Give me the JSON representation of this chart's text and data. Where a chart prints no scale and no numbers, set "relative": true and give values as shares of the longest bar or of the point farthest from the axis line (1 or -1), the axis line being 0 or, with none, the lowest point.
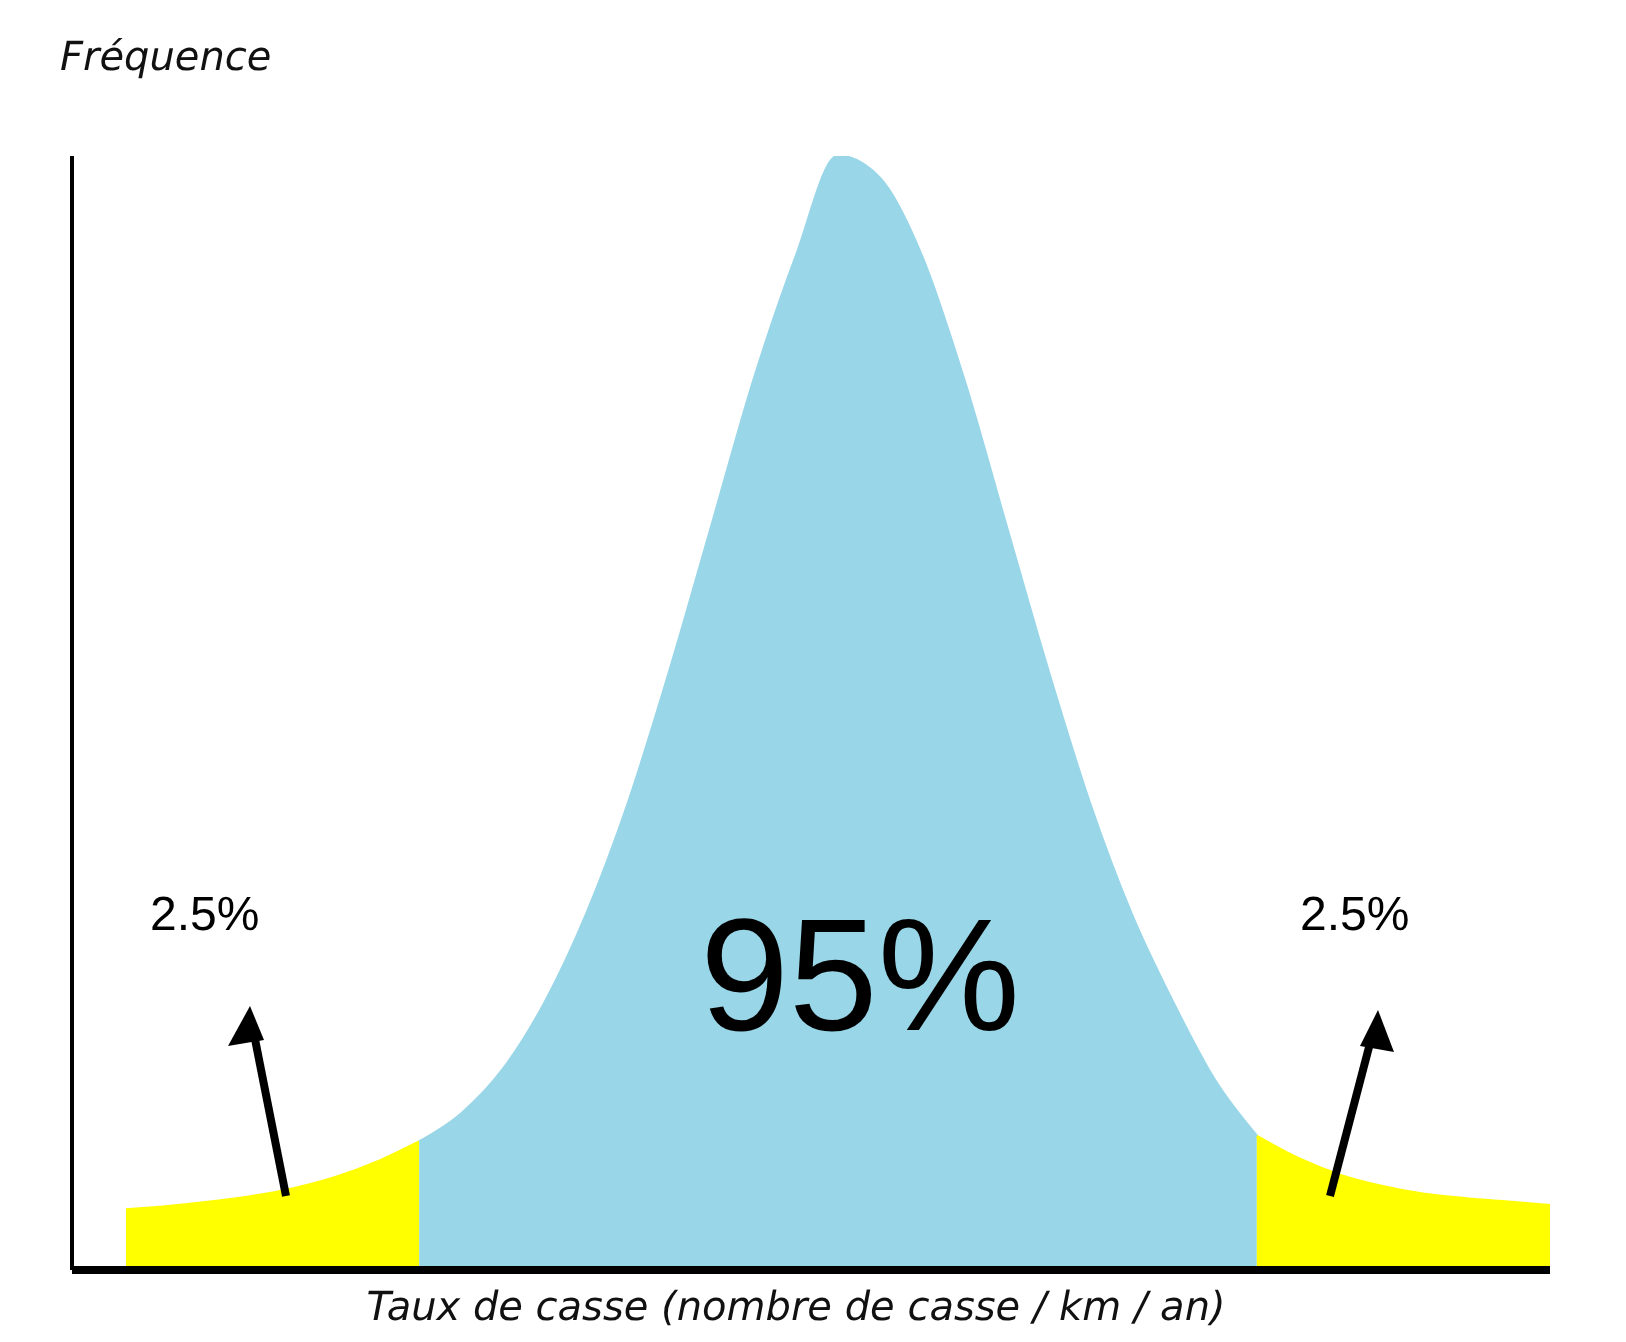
{
  "chart_data": {
    "type": "area",
    "relative": true,
    "ylabel": "Fréquence",
    "xlabel": "Taux de casse (nombre de casse / km / an)",
    "categories": [
      null,
      null,
      null,
      null,
      null,
      null,
      null,
      null,
      null,
      null,
      null,
      null,
      null,
      null,
      null,
      null,
      null,
      null,
      null,
      null,
      null,
      null,
      null,
      null,
      null,
      null,
      null,
      null,
      null,
      null,
      null,
      null,
      null,
      null,
      null
    ],
    "series": [
      {
        "color": "#ffff00",
        "values": [
          0.054,
          0.057,
          0.061,
          0.066,
          0.073,
          0.083,
          0.097,
          0.115,
          null,
          null,
          null,
          null,
          null,
          null,
          null,
          null,
          null,
          null,
          null,
          null,
          null,
          null,
          null,
          null,
          null,
          null,
          null,
          null,
          null,
          null,
          null,
          null,
          null,
          null,
          null
        ]
      },
      {
        "color": "#98d6e8",
        "values": [
          null,
          null,
          null,
          null,
          null,
          null,
          null,
          0.115,
          0.14,
          0.18,
          0.24,
          0.32,
          0.42,
          0.54,
          0.67,
          0.8,
          0.91,
          1,
          0.98,
          0.91,
          0.8,
          0.67,
          0.54,
          0.42,
          0.32,
          0.24,
          0.17,
          0.12,
          null,
          null,
          null,
          null,
          null,
          null,
          null
        ]
      },
      {
        "color": "#ffff00",
        "values": [
          null,
          null,
          null,
          null,
          null,
          null,
          null,
          null,
          null,
          null,
          null,
          null,
          null,
          null,
          null,
          null,
          null,
          null,
          null,
          null,
          null,
          null,
          null,
          null,
          null,
          null,
          null,
          0.12,
          0.1,
          0.085,
          0.075,
          0.068,
          0.064,
          0.061,
          0.058
        ]
      }
    ],
    "annotations": [
      "2.5%",
      "95%",
      "2.5%"
    ],
    "grid": false
  }
}
